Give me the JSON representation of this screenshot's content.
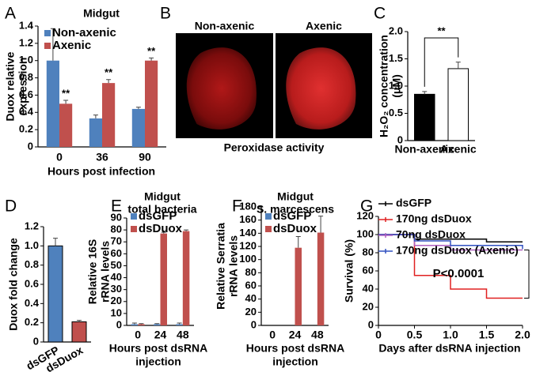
{
  "chart_data": [
    {
      "type": "bar",
      "label": "A",
      "title": [
        "Midgut"
      ],
      "ylabel": [
        "Duox relative",
        "expression"
      ],
      "xlabel": [
        "Hours post infection"
      ],
      "categories": [
        "0",
        "36",
        "90"
      ],
      "series": [
        {
          "name": "Non-axenic",
          "color": "#4f81bd",
          "values": [
            1.0,
            0.33,
            0.44
          ],
          "errors": [
            0.37,
            0.04,
            0.02
          ]
        },
        {
          "name": "Axenic",
          "color": "#c0504d",
          "values": [
            0.5,
            0.74,
            1.0
          ],
          "errors": [
            0.04,
            0.04,
            0.03
          ],
          "annotations": [
            "**",
            "**",
            "**"
          ]
        }
      ],
      "ylim": [
        0,
        1.4
      ],
      "yticks": [
        0,
        0.2,
        0.4,
        0.6,
        0.8,
        {
          "value": 1,
          "label": "1.0"
        },
        1.2,
        1.4
      ]
    },
    {
      "type": "image",
      "label": "B",
      "panels": [
        "Non-axenic",
        "Axenic"
      ],
      "caption": "Peroxidase activity"
    },
    {
      "type": "bar",
      "label": "C",
      "ylabel": [
        "H₂O₂ concentration",
        "(μM)"
      ],
      "categories": [
        "Non-axenic",
        "Axenic"
      ],
      "values": [
        0.85,
        1.32
      ],
      "errors": [
        0.05,
        0.12
      ],
      "colors": [
        "#000000",
        "#ffffff"
      ],
      "annotation": "**",
      "ylim": [
        0,
        2
      ],
      "yticks": [
        0,
        0.5,
        {
          "value": 1,
          "label": "1.0"
        },
        1.5,
        {
          "value": 2,
          "label": "2.0"
        }
      ]
    },
    {
      "type": "bar",
      "label": "D",
      "ylabel": [
        "Duox fold change"
      ],
      "categories": [
        "dsGFP",
        "dsDuox"
      ],
      "values": [
        1.0,
        0.21
      ],
      "errors": [
        0.08,
        0.015
      ],
      "colors": [
        "#4f81bd",
        "#c0504d"
      ],
      "ylim": [
        0,
        1.2
      ],
      "yticks": [
        0,
        0.2,
        0.4,
        0.6,
        0.8,
        {
          "value": 1,
          "label": "1.0"
        },
        1.2
      ]
    },
    {
      "type": "bar",
      "label": "E",
      "title": [
        "Midgut",
        "total bacteria"
      ],
      "ylabel": [
        "Relative 16S",
        "rRNA levels"
      ],
      "xlabel": [
        "Hours post dsRNA",
        "injection"
      ],
      "categories": [
        "0",
        "24",
        "48"
      ],
      "series": [
        {
          "name": "dsGFP",
          "color": "#4f81bd",
          "values": [
            1,
            1,
            1
          ],
          "errors": [
            1,
            0.5,
            1
          ]
        },
        {
          "name": "dsDuox",
          "color": "#c0504d",
          "values": [
            1,
            77,
            79
          ],
          "errors": [
            0.5,
            1,
            1
          ]
        }
      ],
      "ylim": [
        0,
        90
      ],
      "yticks": [
        0,
        10,
        20,
        30,
        40,
        50,
        60,
        70,
        80,
        90
      ]
    },
    {
      "type": "bar",
      "label": "F",
      "title": [
        "Midgut",
        "S. marcescens"
      ],
      "ylabel": [
        "Relative Serratia",
        "rRNA levels"
      ],
      "xlabel": [
        "Hours post dsRNA",
        "injection"
      ],
      "categories": [
        "0",
        "24",
        "48"
      ],
      "series": [
        {
          "name": "dsGFP",
          "color": "#4f81bd",
          "values": [
            0,
            0,
            0
          ],
          "errors": [
            0,
            0,
            0
          ]
        },
        {
          "name": "dsDuox",
          "color": "#c0504d",
          "values": [
            0,
            118,
            141
          ],
          "errors": [
            0,
            17,
            25
          ]
        }
      ],
      "ylim": [
        0,
        180
      ],
      "yticks": [
        0,
        20,
        40,
        60,
        80,
        100,
        120,
        140,
        160,
        180
      ]
    },
    {
      "type": "line",
      "label": "G",
      "step": true,
      "ylabel": [
        "Survival (%)"
      ],
      "xlabel": [
        "Days after dsRNA injection"
      ],
      "x": [
        0,
        0.5,
        1,
        1.5,
        2
      ],
      "series": [
        {
          "name": "dsGFP",
          "color": "#000000",
          "values": [
            100,
            95,
            95,
            92,
            92
          ]
        },
        {
          "name": "170ng dsDuox",
          "color": "#e02020",
          "values": [
            100,
            55,
            40,
            30,
            30
          ]
        },
        {
          "name": "70ng dsDuox",
          "color": "#b060c0",
          "values": [
            100,
            88,
            83,
            83,
            83
          ]
        },
        {
          "name": "170ng dsDuox (Axenic)",
          "color": "#3050c0",
          "values": [
            100,
            93,
            88,
            88,
            84
          ]
        }
      ],
      "annotation": "P<0.0001",
      "xlim": [
        0,
        2
      ],
      "xticks": [
        0,
        0.5,
        {
          "value": 1,
          "label": "1.0"
        },
        1.5,
        {
          "value": 2,
          "label": "2.0"
        }
      ],
      "ylim": [
        0,
        120
      ],
      "yticks": [
        0,
        20,
        40,
        60,
        80,
        100,
        120
      ]
    }
  ]
}
